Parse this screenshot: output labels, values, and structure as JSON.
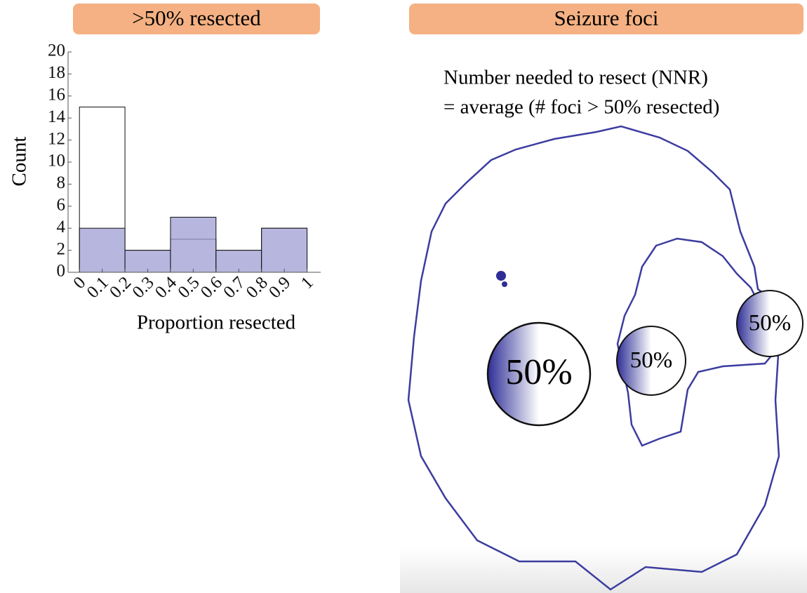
{
  "chart_data": {
    "type": "histogram",
    "title": ">50% resected",
    "x_label": "Proportion resected",
    "y_label": "Count",
    "bins": [
      0,
      0.2,
      0.4,
      0.6,
      0.8,
      1
    ],
    "series": [
      {
        "color": "#ffffff",
        "values": [
          15,
          2,
          3,
          2,
          4
        ]
      },
      {
        "color": "#9d9dd4",
        "values": [
          4,
          2,
          5,
          2,
          4
        ]
      }
    ],
    "xlim": [
      -0.05,
      1.06
    ],
    "ylim": [
      0,
      20
    ],
    "xticks": [
      0,
      0.1,
      0.2,
      0.3,
      0.4,
      0.5,
      0.6,
      0.7,
      0.8,
      0.9,
      1
    ],
    "yticks": [
      0,
      2,
      4,
      6,
      8,
      10,
      12,
      14,
      16,
      18,
      20
    ]
  },
  "diagram": {
    "title": "Seizure foci",
    "lines": [
      "Number needed to resect (NNR)",
      "= average (# foci > 50% resected)"
    ],
    "foci": [
      "50%",
      "50%",
      "50%"
    ]
  }
}
